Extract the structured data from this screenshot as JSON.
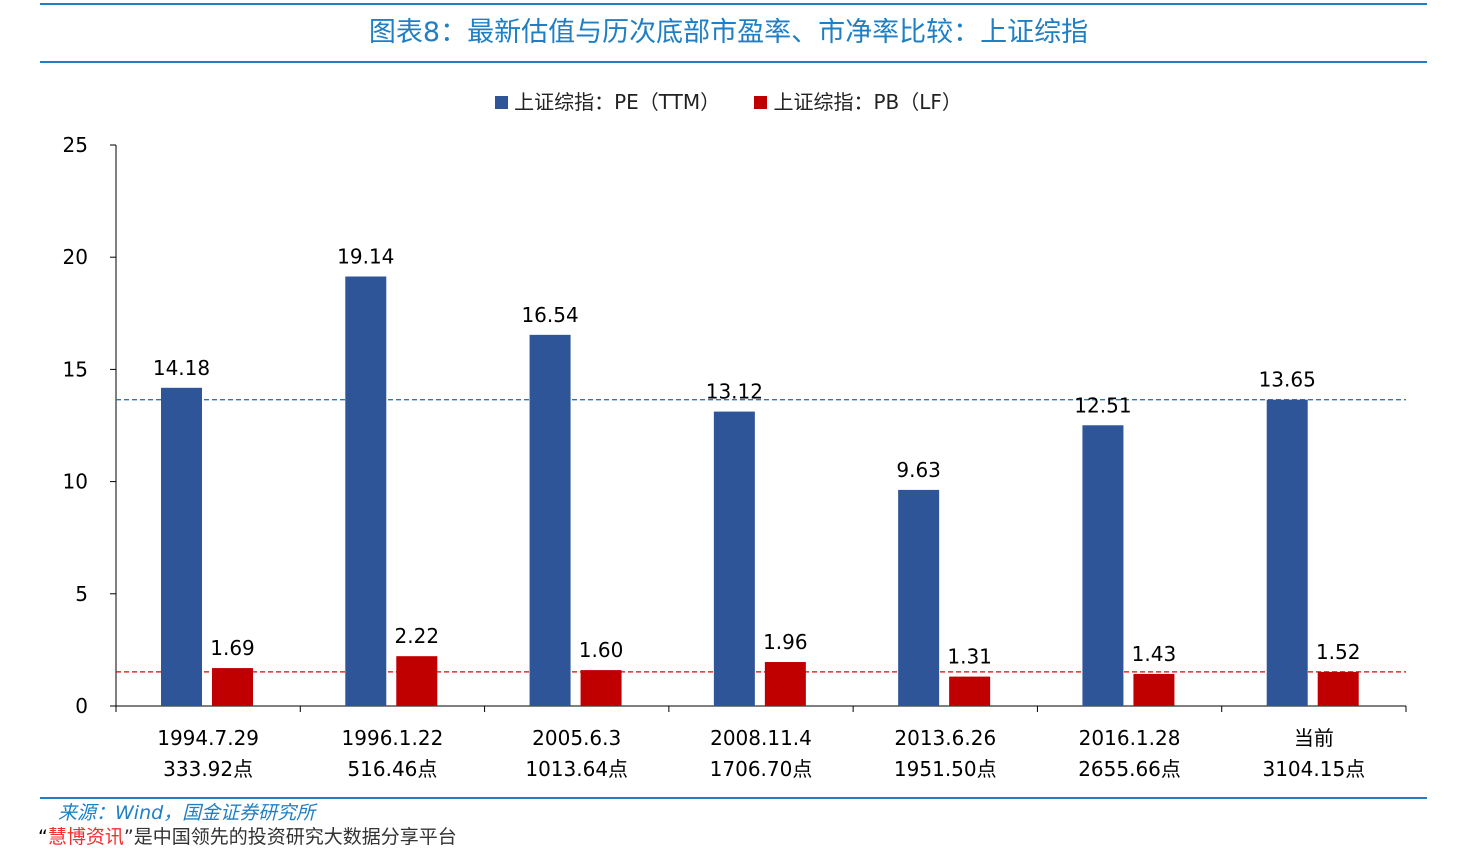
{
  "title": "图表8：最新估值与历次底部市盈率、市净率比较：上证综指",
  "chart_data": {
    "type": "bar",
    "title": "图表8：最新估值与历次底部市盈率、市净率比较：上证综指",
    "categories": [
      [
        "1994.7.29",
        "333.92点"
      ],
      [
        "1996.1.22",
        "516.46点"
      ],
      [
        "2005.6.3",
        "1013.64点"
      ],
      [
        "2008.11.4",
        "1706.70点"
      ],
      [
        "2013.6.26",
        "1951.50点"
      ],
      [
        "2016.1.28",
        "2655.66点"
      ],
      [
        "当前",
        "3104.15点"
      ]
    ],
    "series": [
      {
        "name": "上证综指：PE（TTM）",
        "color": "#2e5597",
        "values": [
          14.18,
          19.14,
          16.54,
          13.12,
          9.63,
          12.51,
          13.65
        ],
        "labels": [
          "14.18",
          "19.14",
          "16.54",
          "13.12",
          "9.63",
          "12.51",
          "13.65"
        ]
      },
      {
        "name": "上证综指：PB（LF）",
        "color": "#c00000",
        "values": [
          1.69,
          2.22,
          1.6,
          1.96,
          1.31,
          1.43,
          1.52
        ],
        "labels": [
          "1.69",
          "2.22",
          "1.60",
          "1.96",
          "1.31",
          "1.43",
          "1.52"
        ]
      }
    ],
    "reference_lines": [
      {
        "value": 13.65,
        "color": "#2e75b6",
        "style": "dashed"
      },
      {
        "value": 1.52,
        "color": "#e00000",
        "style": "dashed"
      }
    ],
    "ylim": [
      0,
      25
    ],
    "yticks": [
      "0",
      "5",
      "10",
      "15",
      "20",
      "25"
    ],
    "legend": "top-center",
    "grid": false
  },
  "footer": {
    "source": "来源：Wind，国金证券研究所",
    "watermark_red": "慧博资讯",
    "watermark_open": "“",
    "watermark_rest": "”是中国领先的投资研究大数据分享平台"
  }
}
